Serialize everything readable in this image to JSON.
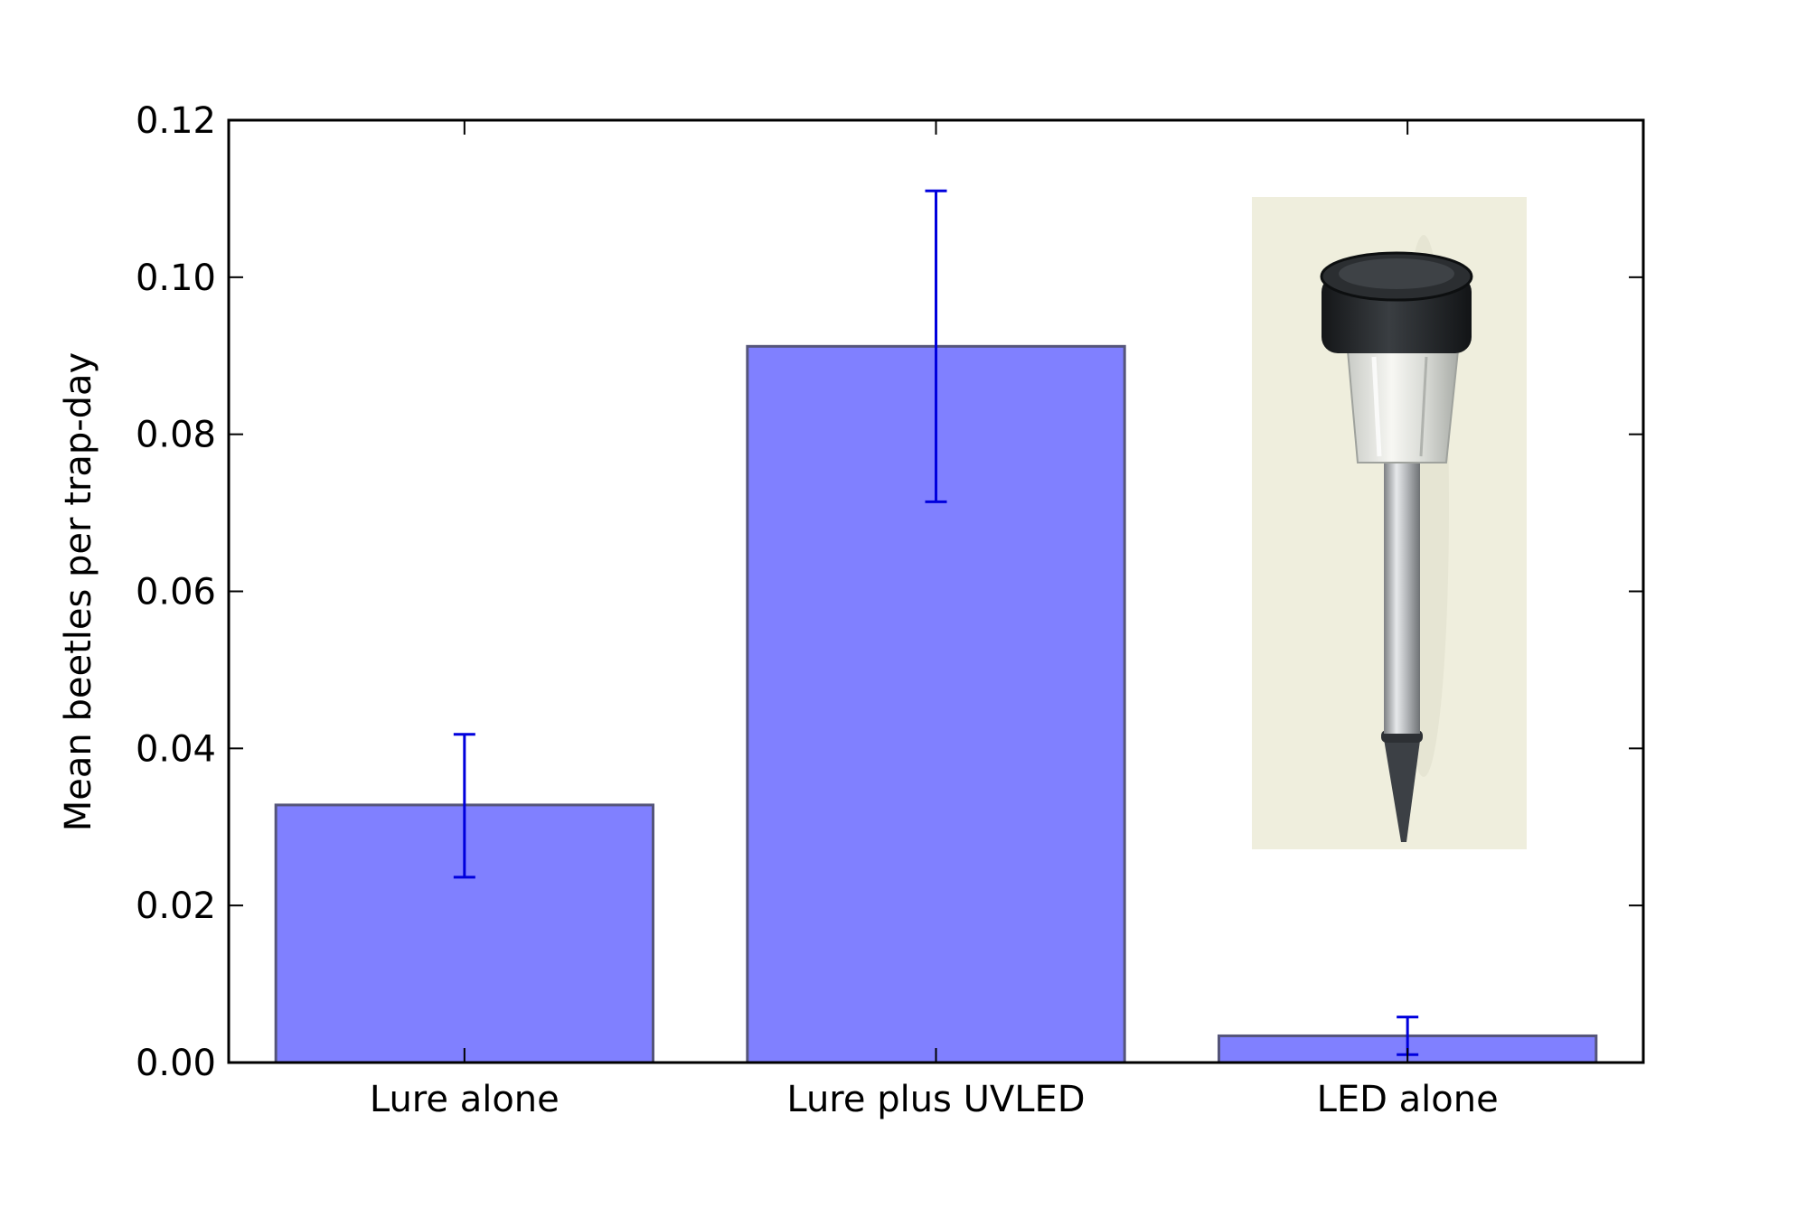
{
  "chart_data": {
    "type": "bar",
    "title": "",
    "xlabel": "",
    "ylabel": "Mean beetles per trap-day",
    "categories": [
      "Lure alone",
      "Lure plus UVLED",
      "LED alone"
    ],
    "values": [
      0.0328,
      0.0912,
      0.0034
    ],
    "error_low": [
      0.0236,
      0.0714,
      0.001
    ],
    "error_high": [
      0.0418,
      0.111,
      0.0058
    ],
    "ylim": [
      0,
      0.12
    ],
    "yticks": [
      "0.00",
      "0.02",
      "0.04",
      "0.06",
      "0.08",
      "0.10",
      "0.12"
    ],
    "ytick_values": [
      0,
      0.02,
      0.04,
      0.06,
      0.08,
      0.1,
      0.12
    ],
    "grid": false,
    "legend": "none",
    "colors": {
      "bar_fill": "#8080ff",
      "bar_edge": "#55557a",
      "error_bar": "#0000dd",
      "axis": "#000000"
    },
    "inset_image": {
      "icon": "solar-garden-stake-light-icon"
    }
  }
}
